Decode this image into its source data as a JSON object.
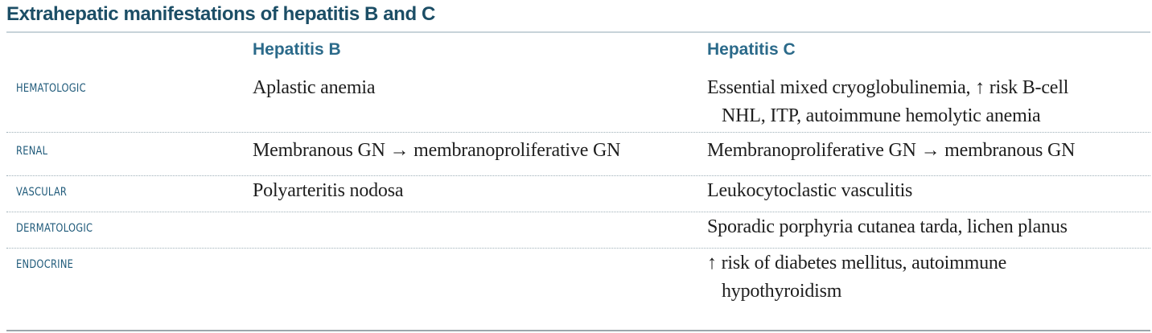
{
  "title": "Extrahepatic manifestations of hepatitis B and C",
  "columns": {
    "b": "Hepatitis B",
    "c": "Hepatitis C"
  },
  "rows": [
    {
      "category": "HEMATOLOGIC",
      "hep_b": "Aplastic anemia",
      "hep_c_line1": "Essential mixed cryoglobulinemia, ↑ risk B-cell",
      "hep_c_line2": "NHL, ITP, autoimmune hemolytic anemia"
    },
    {
      "category": "RENAL",
      "hep_b": "Membranous GN → membranoproliferative GN",
      "hep_c_line1": "Membranoproliferative GN → membranous GN"
    },
    {
      "category": "VASCULAR",
      "hep_b": "Polyarteritis nodosa",
      "hep_c_line1": "Leukocytoclastic vasculitis"
    },
    {
      "category": "DERMATOLOGIC",
      "hep_b": "",
      "hep_c_line1": "Sporadic porphyria cutanea tarda, lichen planus"
    },
    {
      "category": "ENDOCRINE",
      "hep_b": "",
      "hep_c_line1": "↑ risk of diabetes mellitus, autoimmune",
      "hep_c_line2": "hypothyroidism"
    }
  ]
}
